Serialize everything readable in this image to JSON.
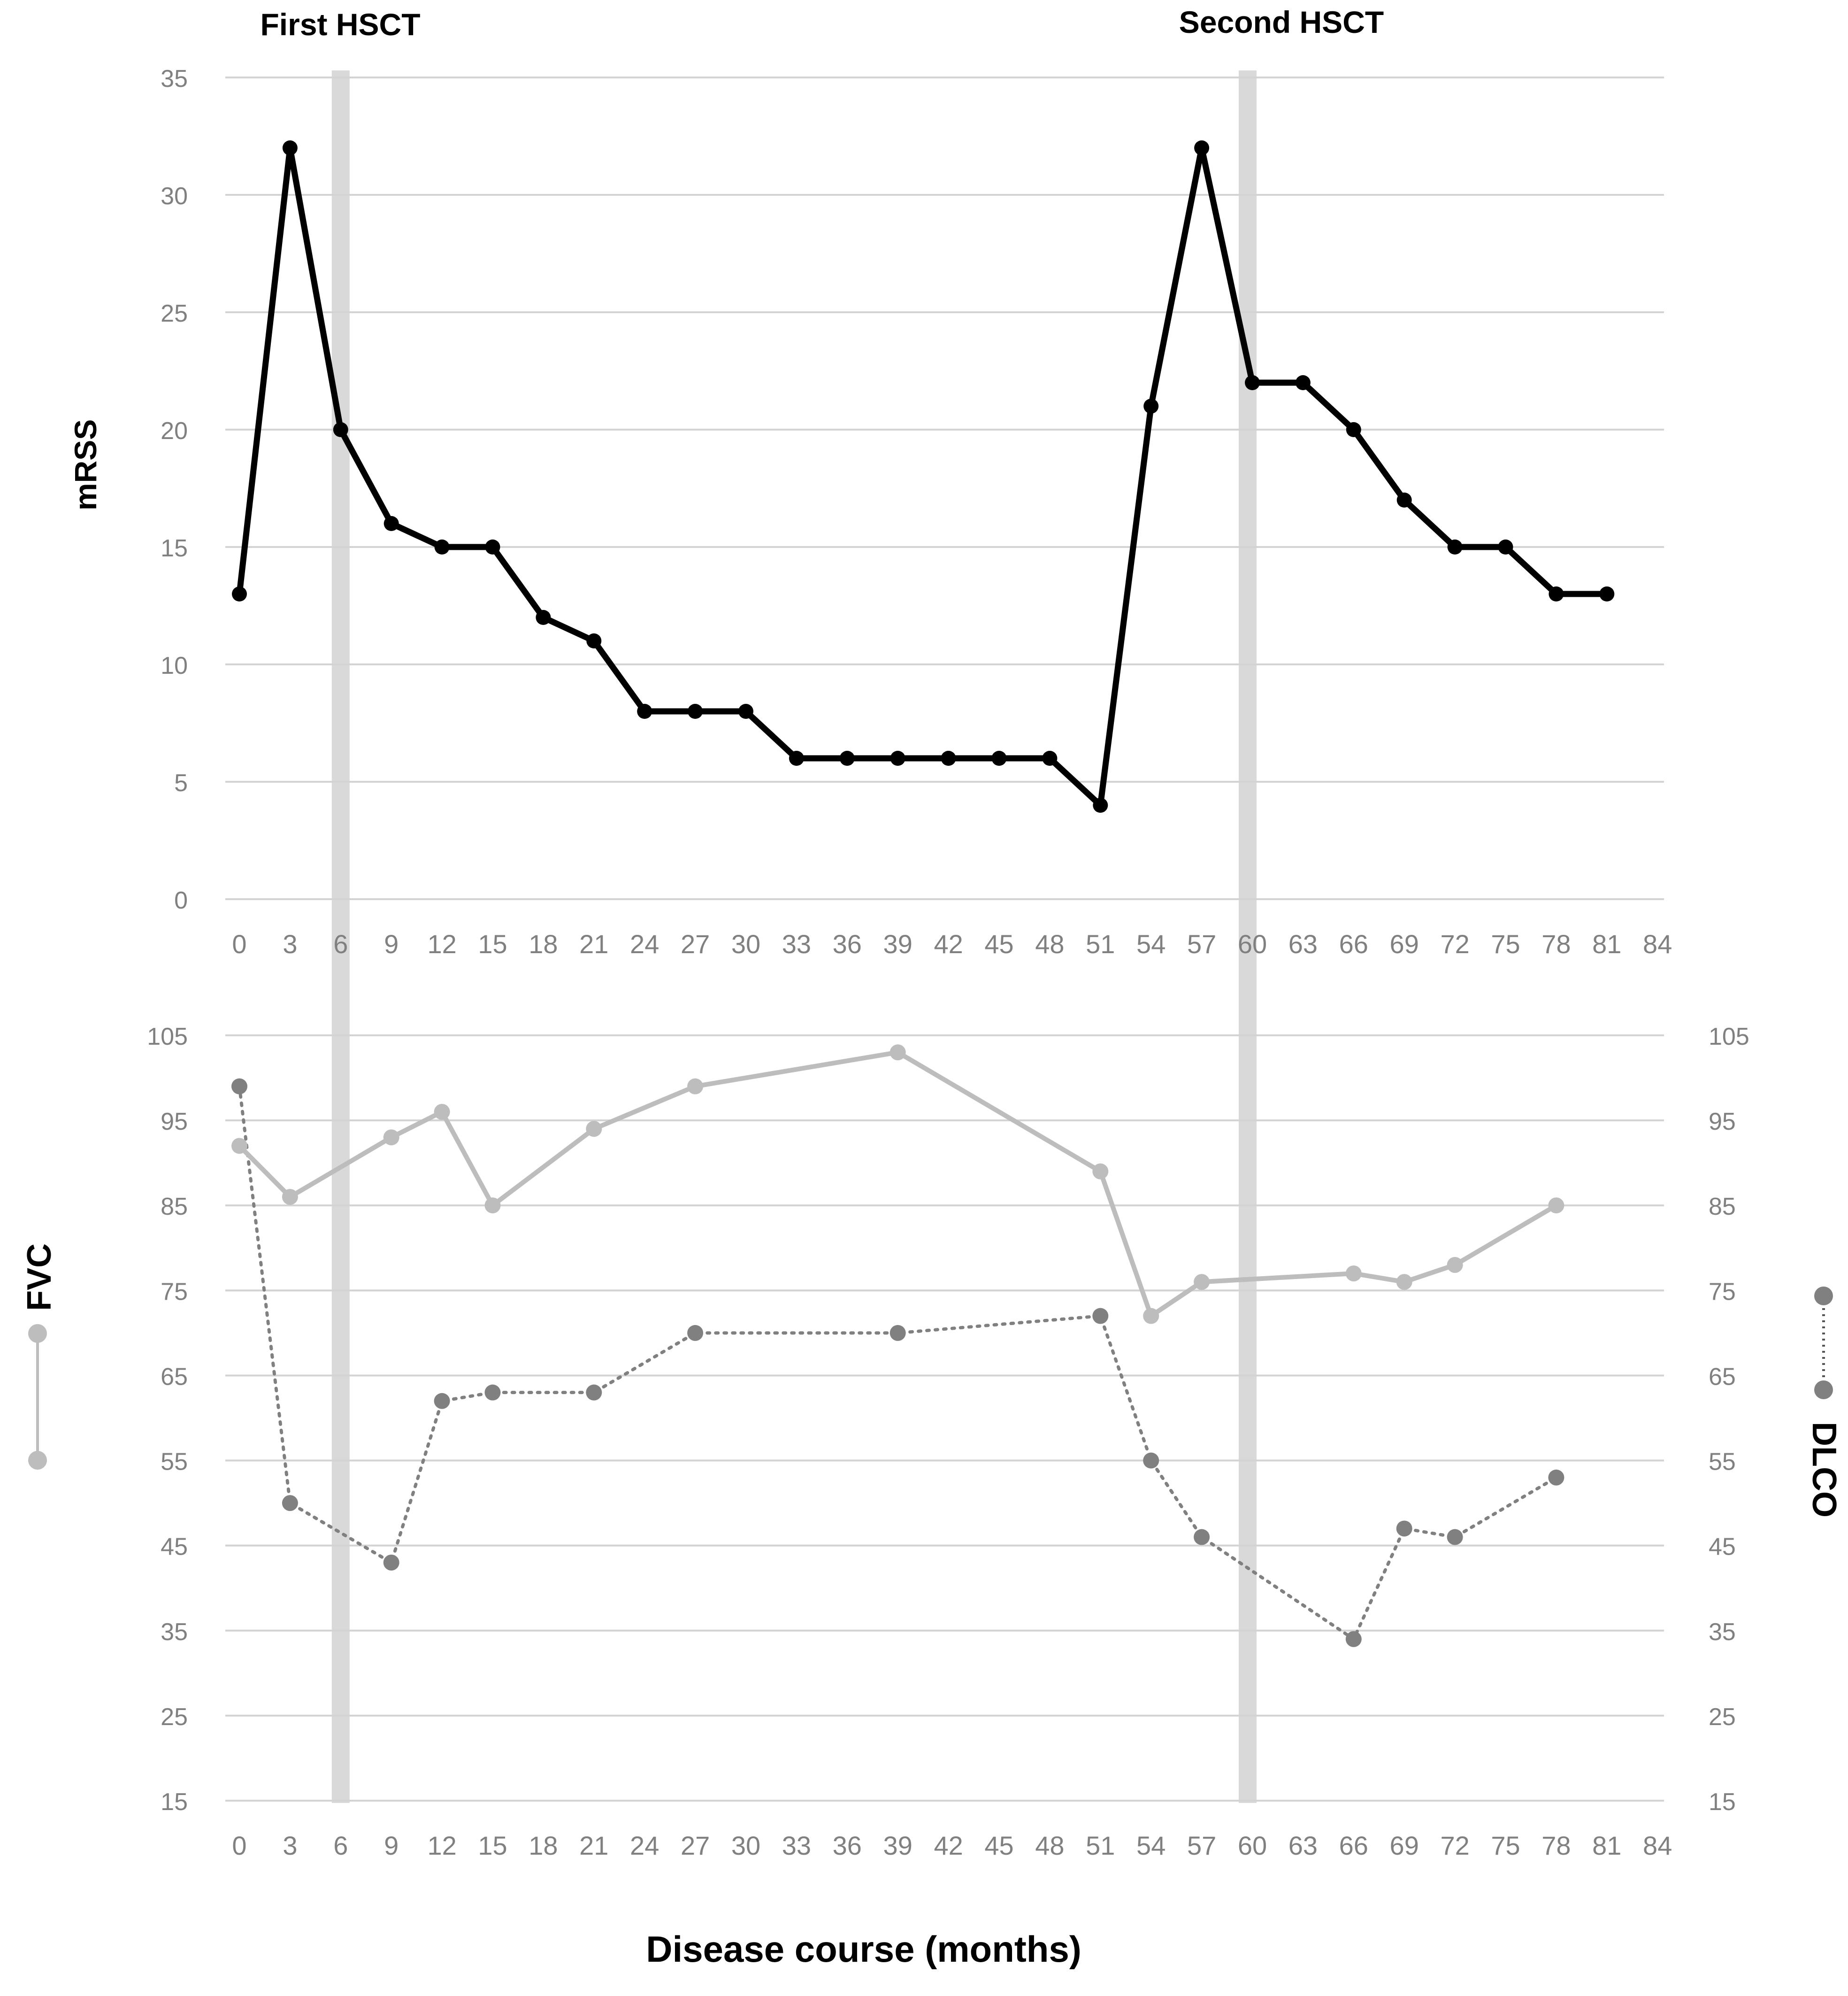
{
  "annotations": {
    "first_hsct": "First HSCT",
    "second_hsct": "Second HSCT"
  },
  "xlabel": "Disease course (months)",
  "colors": {
    "mrss": "#000000",
    "fvc": "#bdbdbd",
    "dlco": "#808080",
    "hsct_band": "#d9d9d9",
    "grid": "#d3d3d3",
    "tick_text": "#808080",
    "label_text": "#000000"
  },
  "chart_data": [
    {
      "type": "line",
      "title": "",
      "xlabel": "",
      "ylabel": "mRSS",
      "x_ticks": [
        0,
        3,
        6,
        9,
        12,
        15,
        18,
        21,
        24,
        27,
        30,
        33,
        36,
        39,
        42,
        45,
        48,
        51,
        54,
        57,
        60,
        63,
        66,
        69,
        72,
        75,
        78,
        81,
        84
      ],
      "xlim": [
        0,
        84
      ],
      "ylim": [
        0,
        35
      ],
      "y_ticks": [
        0,
        5,
        10,
        15,
        20,
        25,
        30,
        35
      ],
      "grid": true,
      "hsct_months": [
        6,
        60
      ],
      "series": [
        {
          "name": "mRSS",
          "style": "solid",
          "x": [
            0,
            3,
            6,
            9,
            12,
            15,
            18,
            21,
            24,
            27,
            30,
            33,
            36,
            39,
            42,
            45,
            48,
            51,
            54,
            57,
            60,
            63,
            66,
            69,
            72,
            75,
            78,
            81
          ],
          "y": [
            13,
            32,
            20,
            16,
            15,
            15,
            12,
            11,
            8,
            8,
            8,
            6,
            6,
            6,
            6,
            6,
            6,
            4,
            21,
            32,
            22,
            22,
            20,
            17,
            15,
            15,
            13,
            13
          ]
        }
      ]
    },
    {
      "type": "line",
      "title": "",
      "xlabel": "Disease course (months)",
      "x_ticks": [
        0,
        3,
        6,
        9,
        12,
        15,
        18,
        21,
        24,
        27,
        30,
        33,
        36,
        39,
        42,
        45,
        48,
        51,
        54,
        57,
        60,
        63,
        66,
        69,
        72,
        75,
        78,
        81,
        84
      ],
      "xlim": [
        0,
        84
      ],
      "ylim": [
        15,
        105
      ],
      "y_ticks": [
        15,
        25,
        35,
        45,
        55,
        65,
        75,
        85,
        95,
        105
      ],
      "grid": true,
      "hsct_months": [
        6,
        60
      ],
      "legend_placement": "left and right sides, vertical",
      "series": [
        {
          "name": "FVC",
          "style": "solid",
          "axis": "left",
          "x": [
            0,
            3,
            9,
            12,
            15,
            21,
            27,
            39,
            51,
            54,
            57,
            66,
            69,
            72,
            78
          ],
          "y": [
            92,
            86,
            93,
            96,
            85,
            94,
            99,
            103,
            89,
            72,
            76,
            77,
            76,
            78,
            85
          ]
        },
        {
          "name": "DLCO",
          "style": "dotted",
          "axis": "right",
          "x": [
            0,
            3,
            9,
            12,
            15,
            21,
            27,
            39,
            51,
            54,
            57,
            66,
            69,
            72,
            78
          ],
          "y": [
            99,
            50,
            43,
            62,
            63,
            63,
            70,
            70,
            72,
            55,
            46,
            34,
            47,
            46,
            53
          ]
        }
      ]
    }
  ]
}
